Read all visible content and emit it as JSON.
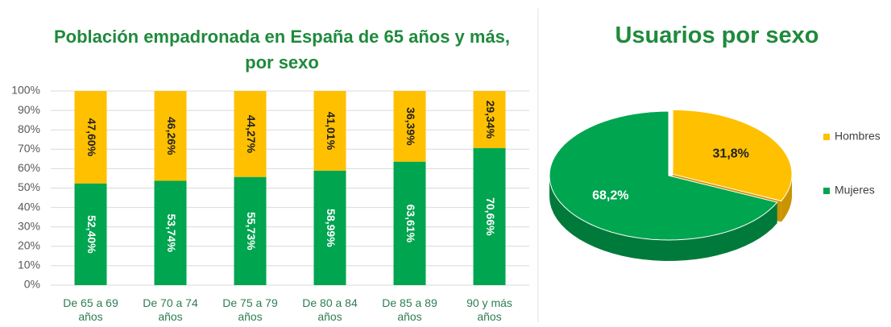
{
  "chart_data": [
    {
      "type": "bar",
      "stacked": true,
      "title": "Población empadronada en España de 65 años y más,  por sexo",
      "categories": [
        "De 65 a 69 años",
        "De 70 a 74 años",
        "De 75 a 79 años",
        "De 80 a 84 años",
        "De 85 a 89 años",
        "90 y más años"
      ],
      "series": [
        {
          "color": "#00a550",
          "values": [
            52.4,
            53.74,
            55.73,
            58.99,
            63.61,
            70.66
          ],
          "value_labels": [
            "52,40%",
            "53,74%",
            "55,73%",
            "58,99%",
            "63,61%",
            "70,66%"
          ]
        },
        {
          "color": "#ffc000",
          "values": [
            47.6,
            46.26,
            44.27,
            41.01,
            36.39,
            29.34
          ],
          "value_labels": [
            "47,60%",
            "46,26%",
            "44,27%",
            "41,01%",
            "36,39%",
            "29,34%"
          ]
        }
      ],
      "ylim": [
        0,
        100
      ],
      "yticks": [
        {
          "value": 0,
          "label": "0%"
        },
        {
          "value": 10,
          "label": "10%"
        },
        {
          "value": 20,
          "label": "20%"
        },
        {
          "value": 30,
          "label": "30%"
        },
        {
          "value": 40,
          "label": "40%"
        },
        {
          "value": 50,
          "label": "50%"
        },
        {
          "value": 60,
          "label": "60%"
        },
        {
          "value": 70,
          "label": "70%"
        },
        {
          "value": 80,
          "label": "80%"
        },
        {
          "value": 90,
          "label": "90%"
        },
        {
          "value": 100,
          "label": "100%"
        }
      ],
      "grid": true
    },
    {
      "type": "pie",
      "title": "Usuarios por sexo",
      "categories": [
        "Hombres",
        "Mujeres"
      ],
      "values": [
        31.8,
        68.2
      ],
      "value_labels": [
        "31,8%",
        "68,2%"
      ],
      "colors": [
        "#ffc000",
        "#00a550"
      ],
      "legend": "right"
    }
  ]
}
